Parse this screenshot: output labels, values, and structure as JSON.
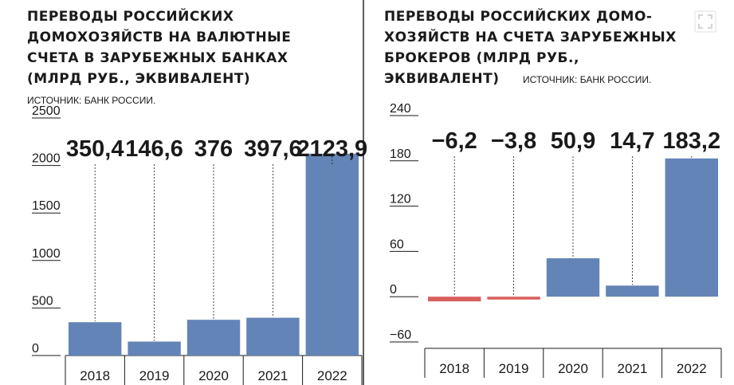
{
  "chart_data": [
    {
      "type": "bar",
      "title_lines": [
        "ПЕРЕВОДЫ РОССИЙСКИХ",
        "ДОМОХОЗЯЙСТВ НА ВАЛЮТНЫЕ",
        "СЧЕТА В ЗАРУБЕЖНЫХ БАНКАХ",
        "(МЛРД РУБ., ЭКВИВАЛЕНТ)"
      ],
      "source": "ИСТОЧНИК: БАНК РОССИИ.",
      "categories": [
        "2018",
        "2019",
        "2020",
        "2021",
        "2022"
      ],
      "values": [
        350.4,
        146.6,
        376,
        397.6,
        2123.9
      ],
      "value_labels": [
        "350,4",
        "146,6",
        "376",
        "397,6",
        "2123,9"
      ],
      "yticks": [
        0,
        500,
        1000,
        1500,
        2000,
        2500
      ],
      "ylim": [
        0,
        2500
      ],
      "grid": false,
      "colors": {
        "positive": "#6384b6",
        "negative": "#d9605e"
      }
    },
    {
      "type": "bar",
      "title_lines": [
        "ПЕРЕВОДЫ РОССИЙСКИХ ДОМО-",
        "ХОЗЯЙСТВ НА СЧЕТА ЗАРУБЕЖНЫХ",
        "БРОКЕРОВ (МЛРД РУБ.,",
        "ЭКВИВАЛЕНТ)"
      ],
      "source": "ИСТОЧНИК: БАНК РОССИИ.",
      "categories": [
        "2018",
        "2019",
        "2020",
        "2021",
        "2022"
      ],
      "values": [
        -6.2,
        -3.8,
        50.9,
        14.7,
        183.2
      ],
      "value_labels": [
        "−6,2",
        "−3,8",
        "50,9",
        "14,7",
        "183,2"
      ],
      "yticks": [
        -60,
        0,
        60,
        120,
        180,
        240
      ],
      "ylim": [
        -60,
        240
      ],
      "grid": false,
      "colors": {
        "positive": "#6384b6",
        "negative": "#d9605e"
      }
    }
  ]
}
